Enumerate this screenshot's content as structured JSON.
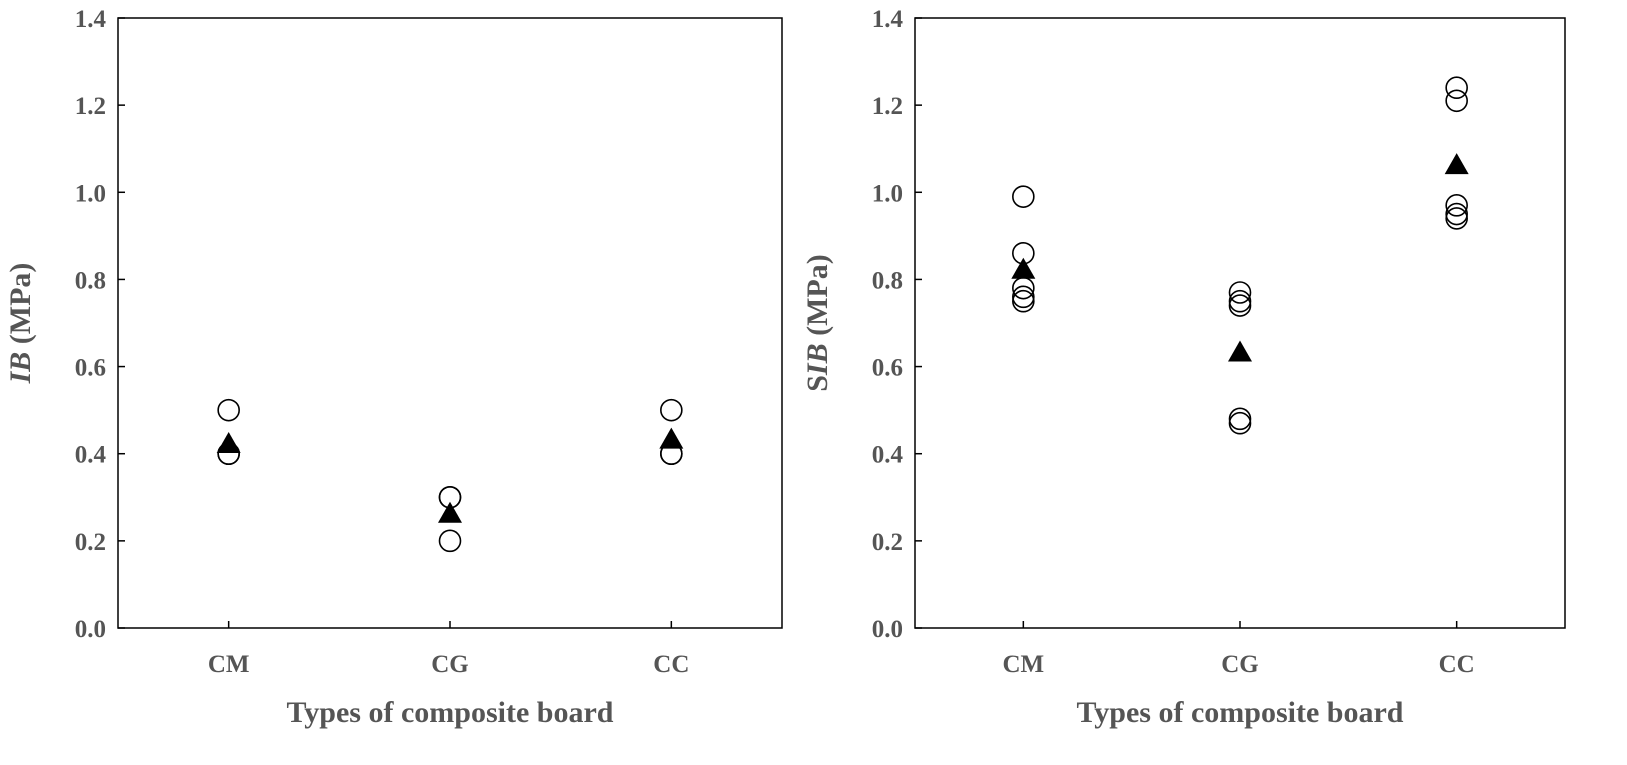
{
  "chart_data": [
    {
      "type": "scatter",
      "ylabel_parts": [
        {
          "text": "IB",
          "italic": true
        },
        {
          "text": " (MPa)",
          "italic": false
        }
      ],
      "xlabel": "Types of composite board",
      "categories": [
        "CM",
        "CG",
        "CC"
      ],
      "ylim": [
        0.0,
        1.4
      ],
      "yticks": [
        "0.0",
        "0.2",
        "0.4",
        "0.6",
        "0.8",
        "1.0",
        "1.2",
        "1.4"
      ],
      "grid": false,
      "series": [
        {
          "marker": "open-circle",
          "points": [
            {
              "category": "CM",
              "value": 0.5
            },
            {
              "category": "CM",
              "value": 0.4
            },
            {
              "category": "CM",
              "value": 0.4
            },
            {
              "category": "CG",
              "value": 0.3
            },
            {
              "category": "CG",
              "value": 0.3
            },
            {
              "category": "CG",
              "value": 0.2
            },
            {
              "category": "CC",
              "value": 0.5
            },
            {
              "category": "CC",
              "value": 0.4
            },
            {
              "category": "CC",
              "value": 0.4
            }
          ]
        },
        {
          "marker": "filled-triangle",
          "points": [
            {
              "category": "CM",
              "value": 0.42
            },
            {
              "category": "CG",
              "value": 0.26
            },
            {
              "category": "CC",
              "value": 0.43
            }
          ]
        }
      ]
    },
    {
      "type": "scatter",
      "ylabel_parts": [
        {
          "text": "S",
          "italic": false
        },
        {
          "text": "IB",
          "italic": true
        },
        {
          "text": " (MPa)",
          "italic": false
        }
      ],
      "xlabel": "Types of composite board",
      "categories": [
        "CM",
        "CG",
        "CC"
      ],
      "ylim": [
        0.0,
        1.4
      ],
      "yticks": [
        "0.0",
        "0.2",
        "0.4",
        "0.6",
        "0.8",
        "1.0",
        "1.2",
        "1.4"
      ],
      "grid": false,
      "series": [
        {
          "marker": "open-circle",
          "points": [
            {
              "category": "CM",
              "value": 0.99
            },
            {
              "category": "CM",
              "value": 0.86
            },
            {
              "category": "CM",
              "value": 0.78
            },
            {
              "category": "CM",
              "value": 0.76
            },
            {
              "category": "CM",
              "value": 0.75
            },
            {
              "category": "CG",
              "value": 0.77
            },
            {
              "category": "CG",
              "value": 0.75
            },
            {
              "category": "CG",
              "value": 0.74
            },
            {
              "category": "CG",
              "value": 0.48
            },
            {
              "category": "CG",
              "value": 0.47
            },
            {
              "category": "CC",
              "value": 1.24
            },
            {
              "category": "CC",
              "value": 1.21
            },
            {
              "category": "CC",
              "value": 0.97
            },
            {
              "category": "CC",
              "value": 0.95
            },
            {
              "category": "CC",
              "value": 0.94
            }
          ]
        },
        {
          "marker": "filled-triangle",
          "points": [
            {
              "category": "CM",
              "value": 0.82
            },
            {
              "category": "CG",
              "value": 0.63
            },
            {
              "category": "CC",
              "value": 1.06
            }
          ]
        }
      ]
    }
  ]
}
